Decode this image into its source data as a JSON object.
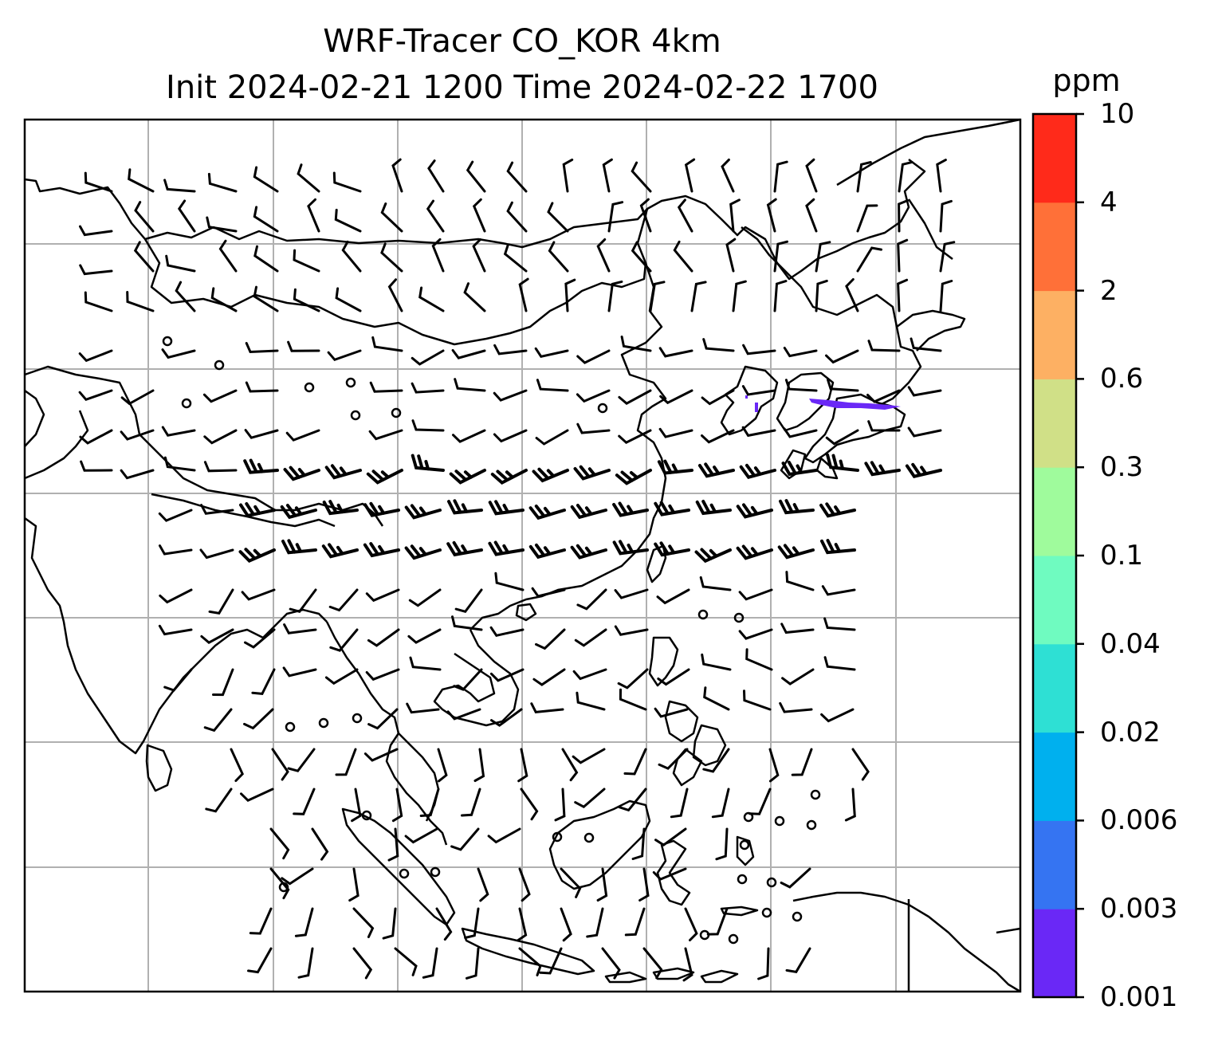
{
  "title": {
    "line1": "WRF-Tracer CO_KOR 4km",
    "line2": "Init 2024-02-21 1200 Time 2024-02-22 1700"
  },
  "colorbar": {
    "unit": "ppm",
    "levels": [
      "0.001",
      "0.003",
      "0.006",
      "0.02",
      "0.04",
      "0.1",
      "0.3",
      "0.6",
      "2",
      "4",
      "10"
    ],
    "colors": [
      "#6a28f6",
      "#3574f2",
      "#00b0ee",
      "#2ee0d4",
      "#6ffbc0",
      "#9ffb9c",
      "#d0e087",
      "#fdb063",
      "#ff7038",
      "#ff2a1a"
    ]
  },
  "map": {
    "projection": "lat-lon",
    "gridlines": true,
    "coastlines": true,
    "overlay": "wind barbs",
    "tracer_plume_color": "#6a28f6"
  }
}
